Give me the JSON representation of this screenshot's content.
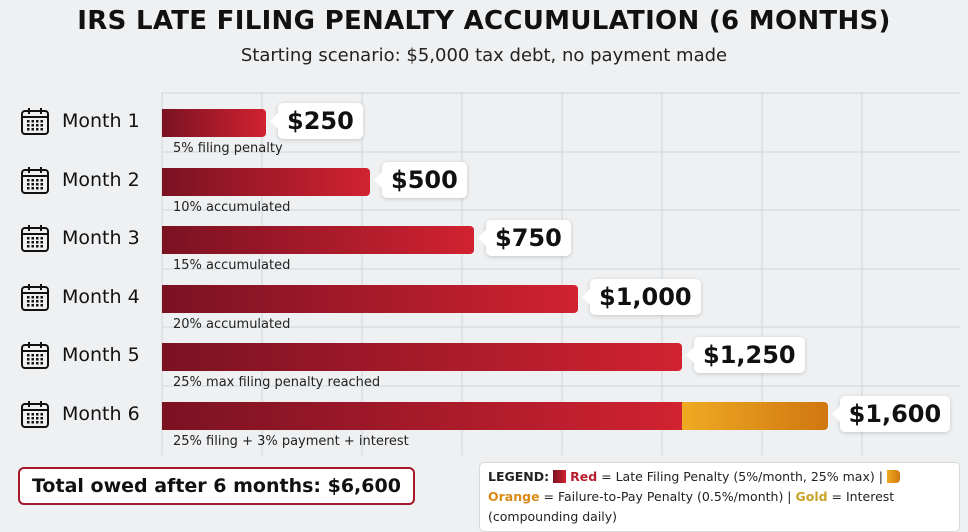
{
  "title": "IRS LATE FILING PENALTY ACCUMULATION (6 MONTHS)",
  "subtitle": "Starting scenario: $5,000 tax debt, no payment made",
  "colors": {
    "red": "#c41e2e",
    "orange": "#e09318",
    "gold": "#c9a227"
  },
  "chart_data": {
    "type": "bar",
    "orientation": "horizontal",
    "stacked": true,
    "grid": true,
    "categories": [
      "Month 1",
      "Month 2",
      "Month 3",
      "Month 4",
      "Month 5",
      "Month 6"
    ],
    "series": [
      {
        "name": "Red",
        "values": [
          250,
          500,
          750,
          1000,
          1250,
          1250
        ]
      },
      {
        "name": "Orange",
        "values": [
          0,
          0,
          0,
          0,
          0,
          350
        ]
      }
    ],
    "totals": [
      "$250",
      "$500",
      "$750",
      "$1,000",
      "$1,250",
      "$1,600"
    ],
    "notes": [
      "5% filing penalty",
      "10% accumulated",
      "15% accumulated",
      "20% accumulated",
      "25% max filing penalty reached",
      "25% filing + 3% payment + interest"
    ]
  },
  "total": "Total owed after 6 months: $6,600",
  "legend": {
    "prefix": "LEGEND:",
    "red": "Red",
    "red_desc": " = Late Filing Penalty (5%/month, 25% max) | ",
    "orange": "Orange",
    "orange_desc": " = Failure-to-Pay Penalty (0.5%/month) | ",
    "gold": "Gold",
    "gold_desc": " = Interest (compounding daily)"
  }
}
